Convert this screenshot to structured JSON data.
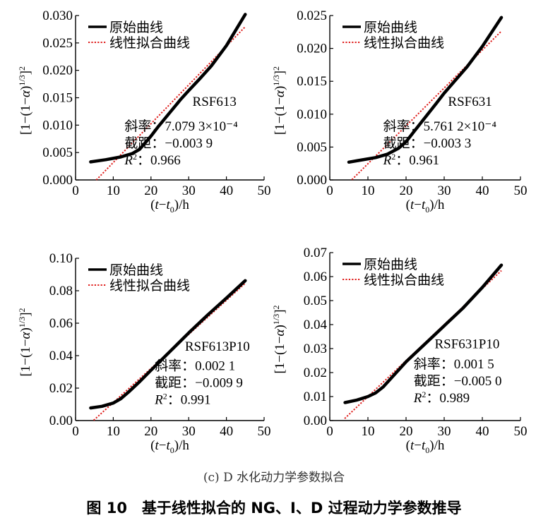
{
  "chart_data": [
    {
      "type": "line",
      "xlabel": "(t−t₀)/h",
      "ylabel": "[1−(1−α)¹ᐟ³]²",
      "xlim": [
        0,
        50
      ],
      "ylim": [
        0,
        0.03
      ],
      "xticks": [
        "0",
        "10",
        "20",
        "30",
        "40",
        "50"
      ],
      "yticks": [
        "0.000",
        "0.005",
        "0.010",
        "0.015",
        "0.020",
        "0.025",
        "0.030"
      ],
      "legend": [
        "原始曲线",
        "线性拟合曲线"
      ],
      "sample": "RSF613",
      "slope_label": "斜率：7.079 3×10⁻⁴",
      "intercept_label": "截距：−0.003 9",
      "r2_value": "0.966",
      "series": [
        {
          "name": "原始曲线",
          "x": [
            4,
            8,
            12,
            15,
            17,
            18,
            20,
            22,
            25,
            28,
            30,
            33,
            36,
            40,
            45
          ],
          "y": [
            0.0033,
            0.0037,
            0.0042,
            0.0048,
            0.0056,
            0.0064,
            0.008,
            0.0098,
            0.0123,
            0.0148,
            0.0163,
            0.0185,
            0.0208,
            0.0245,
            0.0302
          ]
        },
        {
          "name": "线性拟合曲线",
          "slope": 0.00070793,
          "intercept": -0.0039,
          "xrange": [
            5.5,
            45
          ]
        }
      ]
    },
    {
      "type": "line",
      "xlabel": "(t−t₀)/h",
      "ylabel": "[1−(1−α)¹ᐟ³]²",
      "xlim": [
        0,
        50
      ],
      "ylim": [
        0,
        0.025
      ],
      "xticks": [
        "0",
        "10",
        "20",
        "30",
        "40",
        "50"
      ],
      "yticks": [
        "0.000",
        "0.005",
        "0.010",
        "0.015",
        "0.020",
        "0.025"
      ],
      "legend": [
        "原始曲线",
        "线性拟合曲线"
      ],
      "sample": "RSF631",
      "slope_label": "斜率：5.761 2×10⁻⁴",
      "intercept_label": "截距：−0.003 3",
      "r2_value": "0.961",
      "series": [
        {
          "name": "原始曲线",
          "x": [
            5,
            8,
            12,
            15,
            18,
            20,
            22,
            25,
            28,
            30,
            33,
            36,
            40,
            45
          ],
          "y": [
            0.0027,
            0.003,
            0.0034,
            0.0039,
            0.0048,
            0.0058,
            0.0073,
            0.0095,
            0.0117,
            0.0132,
            0.0152,
            0.0172,
            0.0203,
            0.0247
          ]
        },
        {
          "name": "线性拟合曲线",
          "slope": 0.00057612,
          "intercept": -0.0033,
          "xrange": [
            5.8,
            45
          ]
        }
      ]
    },
    {
      "type": "line",
      "xlabel": "(t−t₀)/h",
      "ylabel": "[1−(1−α)¹ᐟ³]²",
      "xlim": [
        0,
        50
      ],
      "ylim": [
        0,
        0.1
      ],
      "xticks": [
        "0",
        "10",
        "20",
        "30",
        "40",
        "50"
      ],
      "yticks": [
        "0.00",
        "0.02",
        "0.04",
        "0.06",
        "0.08",
        "0.10"
      ],
      "legend": [
        "原始曲线",
        "线性拟合曲线"
      ],
      "sample": "RSF613P10",
      "slope_label": "斜率：0.002 1",
      "intercept_label": "截距：−0.009 9",
      "r2_value": "0.991",
      "series": [
        {
          "name": "原始曲线",
          "x": [
            4,
            7,
            10,
            12,
            14,
            17,
            20,
            25,
            30,
            35,
            40,
            45
          ],
          "y": [
            0.0078,
            0.0088,
            0.0108,
            0.0135,
            0.0175,
            0.024,
            0.031,
            0.0425,
            0.054,
            0.065,
            0.0755,
            0.0862
          ]
        },
        {
          "name": "线性拟合曲线",
          "slope": 0.0021,
          "intercept": -0.0099,
          "xrange": [
            4.8,
            45
          ]
        }
      ]
    },
    {
      "type": "line",
      "xlabel": "(t−t₀)/h",
      "ylabel": "[1−(1−α)¹ᐟ³]²",
      "xlim": [
        0,
        50
      ],
      "ylim": [
        0,
        0.07
      ],
      "xticks": [
        "0",
        "10",
        "20",
        "30",
        "40",
        "50"
      ],
      "yticks": [
        "0.00",
        "0.01",
        "0.02",
        "0.03",
        "0.04",
        "0.05",
        "0.06",
        "0.07"
      ],
      "legend": [
        "原始曲线",
        "线性拟合曲线"
      ],
      "sample": "RSF631P10",
      "slope_label": "斜率：0.001 5",
      "intercept_label": "截距：−0.005 0",
      "r2_value": "0.989",
      "series": [
        {
          "name": "原始曲线",
          "x": [
            4,
            7,
            10,
            12,
            14,
            16,
            18,
            20,
            25,
            30,
            35,
            40,
            45
          ],
          "y": [
            0.0075,
            0.0085,
            0.01,
            0.0115,
            0.014,
            0.0175,
            0.021,
            0.0245,
            0.032,
            0.0395,
            0.047,
            0.0555,
            0.0648
          ]
        },
        {
          "name": "线性拟合曲线",
          "slope": 0.0015,
          "intercept": -0.005,
          "xrange": [
            3.9,
            45
          ]
        }
      ]
    }
  ],
  "captions": {
    "sub": "(c) D 水化动力学参数拟合",
    "main": "图 10　基于线性拟合的 NG、I、D 过程动力学参数推导"
  }
}
